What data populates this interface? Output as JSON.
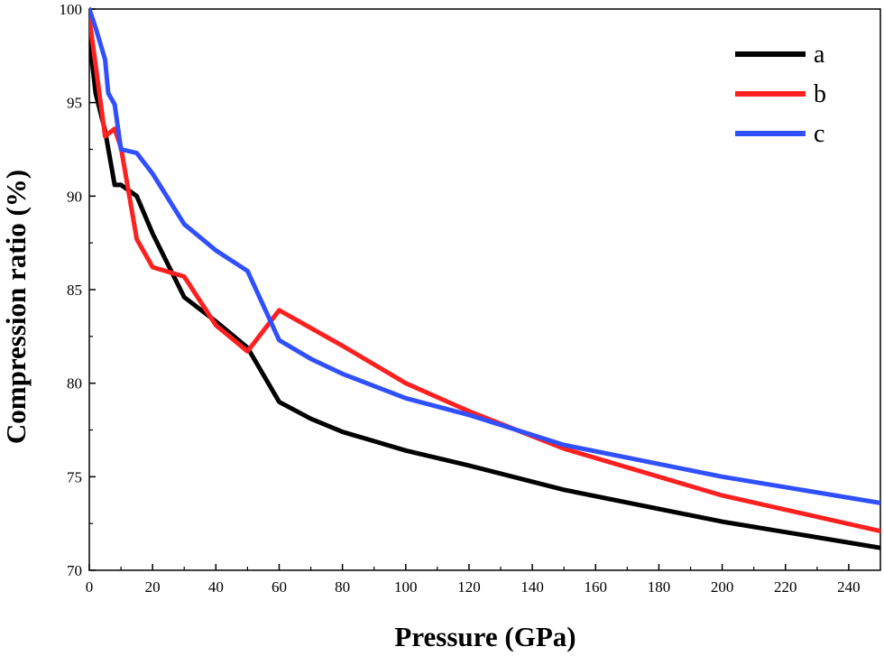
{
  "chart_data": {
    "type": "line",
    "title": "",
    "xlabel": "Pressure (GPa)",
    "ylabel": "Compression ratio (%)",
    "xlim": [
      0,
      250
    ],
    "ylim": [
      70,
      100
    ],
    "xticks": [
      0,
      20,
      40,
      60,
      80,
      100,
      120,
      140,
      160,
      180,
      200,
      220,
      240
    ],
    "yticks": [
      70,
      75,
      80,
      85,
      90,
      95,
      100
    ],
    "grid": false,
    "legend_position": "top-right",
    "series": [
      {
        "name": "a",
        "color": "#000000",
        "x": [
          0,
          2,
          5,
          8,
          10,
          15,
          20,
          30,
          40,
          50,
          60,
          70,
          80,
          90,
          100,
          120,
          150,
          200,
          250
        ],
        "y": [
          98.5,
          95.5,
          93.5,
          90.6,
          90.6,
          90.0,
          88.0,
          84.6,
          83.3,
          81.9,
          79.0,
          78.1,
          77.4,
          76.9,
          76.4,
          75.6,
          74.3,
          72.6,
          71.2
        ]
      },
      {
        "name": "b",
        "color": "#ff2020",
        "x": [
          0,
          2,
          5,
          8,
          10,
          15,
          20,
          30,
          40,
          50,
          60,
          80,
          100,
          120,
          150,
          200,
          250
        ],
        "y": [
          99.5,
          97.0,
          93.2,
          93.6,
          92.6,
          87.7,
          86.2,
          85.7,
          83.1,
          81.7,
          83.9,
          82.0,
          80.0,
          78.5,
          76.5,
          74.0,
          72.1
        ]
      },
      {
        "name": "c",
        "color": "#3050ff",
        "x": [
          0,
          2,
          5,
          6,
          8,
          10,
          15,
          20,
          30,
          40,
          50,
          60,
          70,
          80,
          100,
          120,
          150,
          200,
          250
        ],
        "y": [
          100,
          99.0,
          97.3,
          95.5,
          94.9,
          92.5,
          92.3,
          91.2,
          88.5,
          87.1,
          86.0,
          82.3,
          81.3,
          80.5,
          79.2,
          78.3,
          76.7,
          75.0,
          73.6
        ]
      }
    ]
  }
}
